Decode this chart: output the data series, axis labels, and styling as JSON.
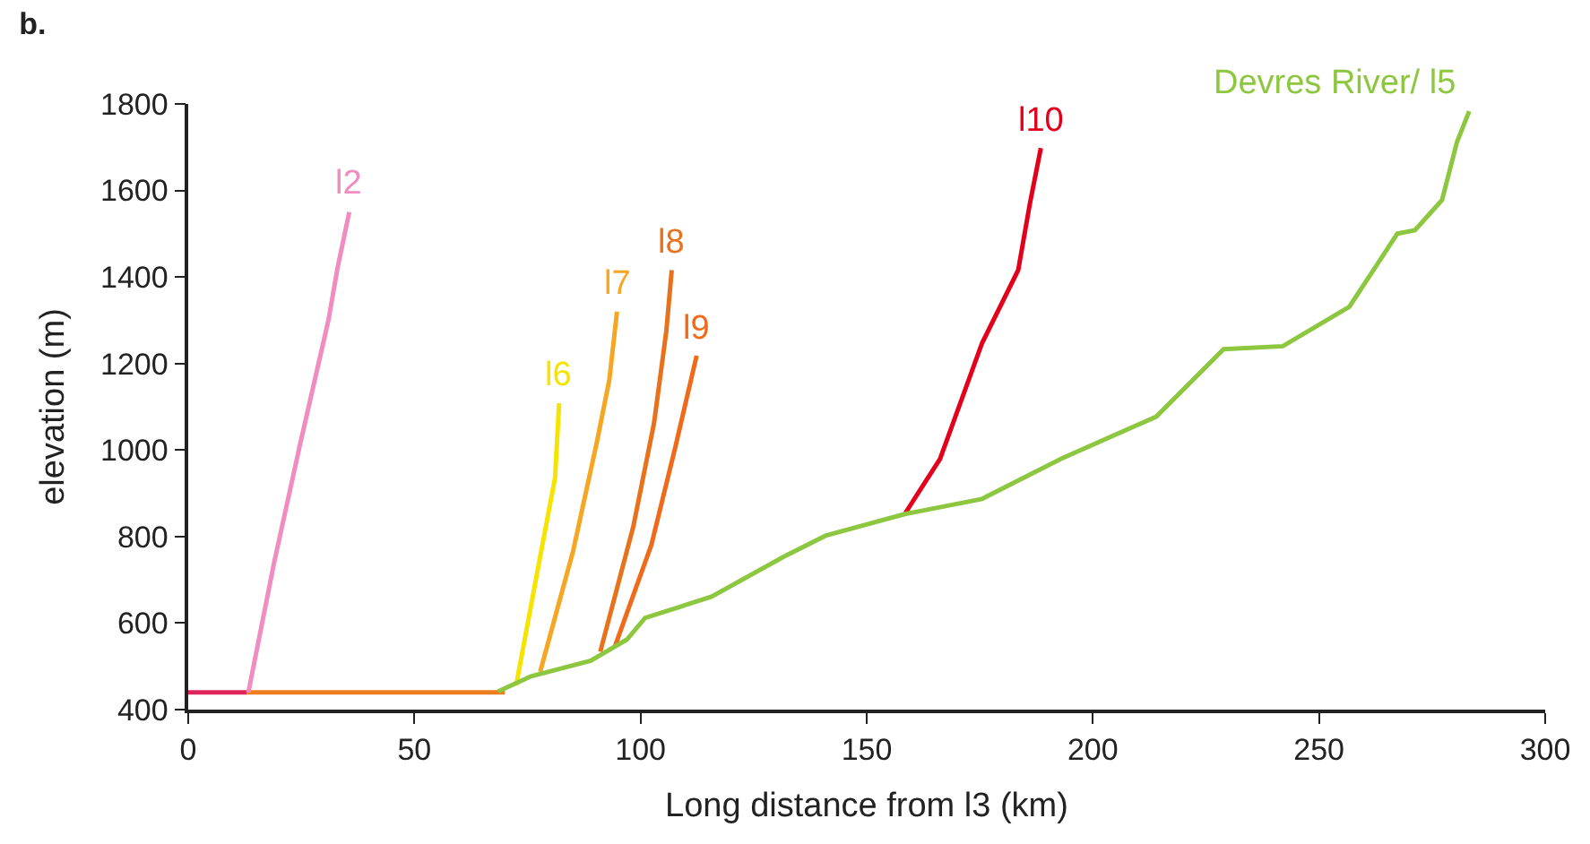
{
  "chart_data": {
    "type": "line",
    "title": "b.",
    "xlabel": "Long distance from l3 (km)",
    "ylabel": "elevation (m)",
    "xlim": [
      0,
      300
    ],
    "xticks": [
      0,
      50,
      100,
      150,
      200,
      250,
      300
    ],
    "ylim": [
      400,
      1800
    ],
    "yticks": [
      400,
      600,
      800,
      1000,
      1200,
      1400,
      1600,
      1800
    ],
    "legend": false,
    "marker": "none",
    "line_style": "solid",
    "series": [
      {
        "color": "#e0245e",
        "x": [
          0,
          13
        ],
        "values": [
          440,
          440
        ]
      },
      {
        "color": "#ee7d1f",
        "x": [
          13,
          70
        ],
        "values": [
          440,
          440
        ]
      },
      {
        "name": "l2",
        "color": "#f08cc0",
        "x": [
          13.3,
          19,
          24.6,
          31,
          33,
          35.6
        ],
        "values": [
          440,
          740,
          1007,
          1300,
          1420,
          1550
        ]
      },
      {
        "name": "l6",
        "color": "#f5e400",
        "x": [
          72.5,
          77.8,
          81.1,
          82
        ],
        "values": [
          456,
          753,
          936,
          1108
        ]
      },
      {
        "name": "l7",
        "color": "#f5a623",
        "x": [
          77.8,
          85.1,
          90.4,
          93.1,
          94.8
        ],
        "values": [
          487,
          767,
          1021,
          1162,
          1320
        ]
      },
      {
        "name": "l8",
        "color": "#e8711c",
        "x": [
          91.1,
          98.4,
          103,
          105.7,
          106.9
        ],
        "values": [
          534,
          823,
          1063,
          1275,
          1416
        ]
      },
      {
        "name": "l9",
        "color": "#ef6a1a",
        "x": [
          94.4,
          102.4,
          107.7,
          112.4
        ],
        "values": [
          548,
          781,
          1007,
          1218
        ]
      },
      {
        "name": "l10",
        "color": "#e3001b",
        "x": [
          158.4,
          166.2,
          175.5,
          183.5,
          186.1,
          188.5
        ],
        "values": [
          852,
          979,
          1247,
          1416,
          1571,
          1698
        ]
      },
      {
        "name": "Devres River/ l5",
        "color": "#8dc63f",
        "x": [
          68.5,
          75.8,
          89,
          97,
          101,
          115.7,
          131.6,
          140.9,
          158.4,
          175.5,
          192.8,
          214,
          228.9,
          242,
          256.7,
          267.3,
          271.2,
          277.2,
          280.5,
          283.2
        ],
        "values": [
          442,
          477,
          513,
          562,
          612,
          661,
          753,
          802,
          852,
          887,
          979,
          1077,
          1233,
          1240,
          1331,
          1500,
          1508,
          1578,
          1712,
          1783
        ]
      }
    ]
  }
}
